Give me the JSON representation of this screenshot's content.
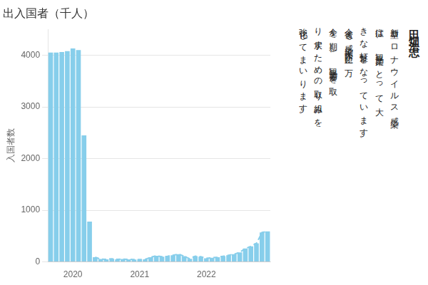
{
  "chart_data": {
    "type": "bar",
    "title": "出入国者（千人）",
    "ylabel": "入国者数",
    "categories": [
      null,
      null,
      null,
      null,
      "2020",
      null,
      null,
      null,
      null,
      null,
      null,
      null,
      null,
      null,
      null,
      null,
      "2021",
      null,
      null,
      null,
      null,
      null,
      null,
      null,
      null,
      null,
      null,
      null,
      "2022",
      null,
      null,
      null,
      null,
      null,
      null,
      null,
      null,
      null,
      null,
      null
    ],
    "series": [
      {
        "type": "bar",
        "color": "#87CEEB",
        "values": [
          4050,
          4050,
          4060,
          4080,
          4130,
          4100,
          2450,
          780,
          90,
          55,
          50,
          60,
          50,
          55,
          50,
          45,
          45,
          50,
          90,
          120,
          100,
          110,
          130,
          150,
          110,
          60,
          110,
          100,
          70,
          80,
          90,
          110,
          130,
          150,
          185,
          260,
          300,
          360,
          570,
          590
        ]
      },
      {
        "type": "line",
        "color": "#87CEEB",
        "line_style": "dashed",
        "values": [
          null,
          null,
          null,
          null,
          null,
          null,
          null,
          null,
          90,
          55,
          50,
          60,
          50,
          55,
          50,
          45,
          45,
          50,
          90,
          120,
          100,
          110,
          130,
          150,
          110,
          60,
          110,
          100,
          70,
          80,
          90,
          110,
          130,
          150,
          185,
          260,
          300,
          360,
          570,
          590
        ]
      }
    ],
    "ylim": [
      0,
      4500
    ],
    "yticks": [
      0,
      1000,
      2000,
      3000,
      4000
    ],
    "grid": true,
    "annotations": [
      "田畑浩志",
      "新型コロナウイルス感染",
      "症は、観光業にとって大",
      "きな打撃となっています。",
      "今後も感染拡大防止に万",
      "全を期し、観光需要を取",
      "り戻すための取り組みを",
      "強化してまいります。"
    ]
  }
}
